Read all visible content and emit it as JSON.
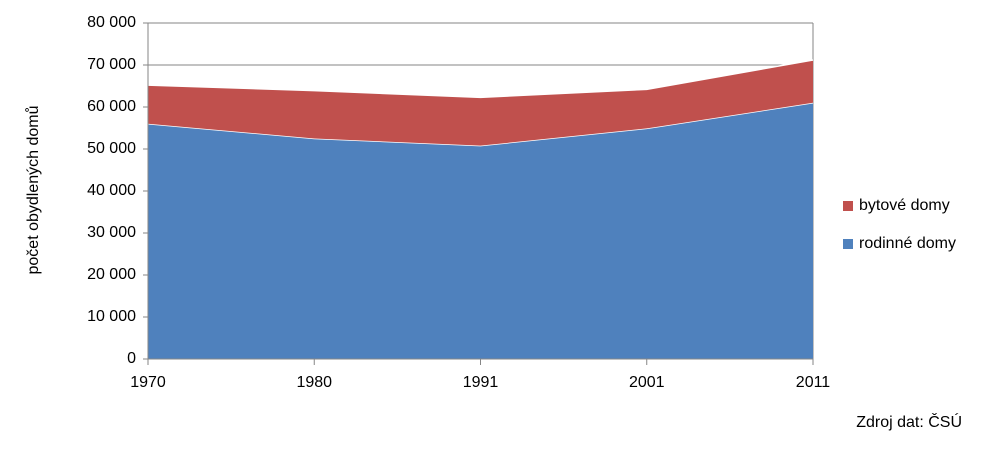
{
  "chart_data": {
    "type": "stacked_area",
    "y_label": "počet obydlených domů",
    "source": "Zdroj dat: ČSÚ",
    "categories": [
      "1970",
      "1980",
      "1991",
      "2001",
      "2011"
    ],
    "series": [
      {
        "name": "rodinné domy",
        "color": "#4f81bd",
        "values": [
          56000,
          52500,
          50800,
          54900,
          61000
        ]
      },
      {
        "name": "bytové domy",
        "color": "#c0504d",
        "values": [
          9200,
          11400,
          11500,
          9300,
          10200
        ]
      }
    ],
    "ylim": [
      0,
      80000
    ],
    "yticks": [
      0,
      {
        "value": 10000,
        "label": "10 000"
      },
      {
        "value": 20000,
        "label": "20 000"
      },
      {
        "value": 30000,
        "label": "30 000"
      },
      {
        "value": 40000,
        "label": "40 000"
      },
      {
        "value": 50000,
        "label": "50 000"
      },
      {
        "value": 60000,
        "label": "60 000"
      },
      {
        "value": 70000,
        "label": "70 000"
      },
      {
        "value": 80000,
        "label": "80 000"
      }
    ],
    "grid": true
  }
}
